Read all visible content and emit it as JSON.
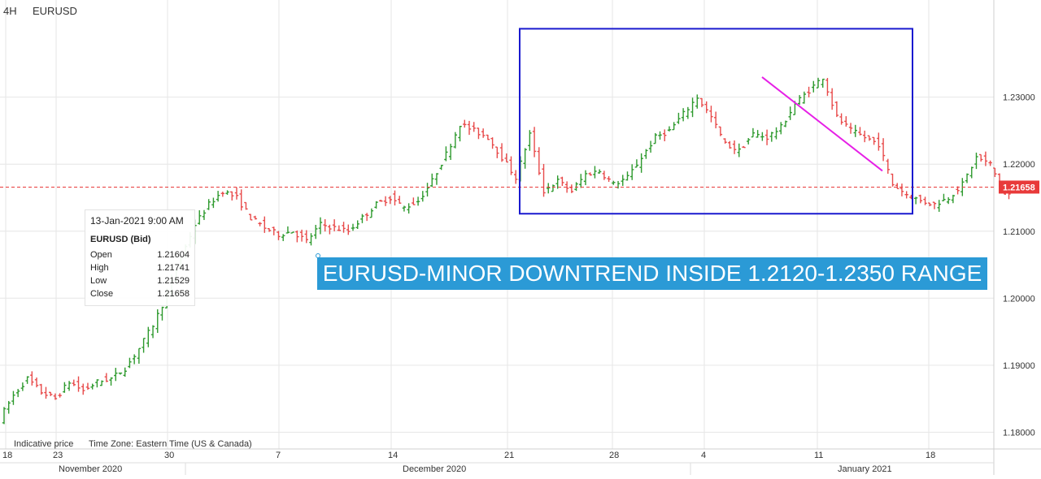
{
  "header": {
    "timeframe": "4H",
    "symbol": "EURUSD"
  },
  "tooltip": {
    "datetime": "13-Jan-2021 9:00 AM",
    "instrument": "EURUSD (Bid)",
    "rows": [
      {
        "label": "Open",
        "value": "1.21604"
      },
      {
        "label": "High",
        "value": "1.21741"
      },
      {
        "label": "Low",
        "value": "1.21529"
      },
      {
        "label": "Close",
        "value": "1.21658"
      }
    ]
  },
  "annotation": {
    "text": "EURUSD-MINOR DOWNTREND INSIDE 1.2120-1.2350 RANGE"
  },
  "footer": {
    "indicative": "Indicative price",
    "timezone": "Time Zone: Eastern Time (US & Canada)"
  },
  "colors": {
    "up": "#2e9a2e",
    "down": "#e84a4a",
    "box": "#1a1acf",
    "trendline": "#e620e6",
    "price_line": "#e83a3a",
    "price_tag": "#e83a3a",
    "banner": "#2b9ad6",
    "grid": "#e6e6e6"
  },
  "chart_data": {
    "type": "ohlc",
    "instrument": "EURUSD",
    "ylim": [
      1.1775,
      1.2445
    ],
    "y_ticks": [
      "1.18000",
      "1.19000",
      "1.20000",
      "1.21000",
      "1.22000",
      "1.23000"
    ],
    "x_ticks": [
      "18",
      "23",
      "30",
      "7",
      "14",
      "21",
      "28",
      "4",
      "11",
      "18"
    ],
    "month_labels": [
      "November 2020",
      "December 2020",
      "January 2021"
    ],
    "current_price": "1.21658",
    "range_box": {
      "low": 1.212,
      "high": 1.235,
      "start": "Dec 21",
      "end": "Jan 16"
    },
    "trendline": {
      "from": {
        "date": "Jan 6",
        "price": 1.233
      },
      "to": {
        "date": "Jan 15",
        "price": 1.219
      }
    },
    "path": [
      [
        0,
        1.182
      ],
      [
        3,
        1.1855
      ],
      [
        6,
        1.188
      ],
      [
        9,
        1.186
      ],
      [
        12,
        1.185
      ],
      [
        15,
        1.1875
      ],
      [
        18,
        1.1862
      ],
      [
        21,
        1.1875
      ],
      [
        24,
        1.188
      ],
      [
        27,
        1.1895
      ],
      [
        30,
        1.1925
      ],
      [
        33,
        1.196
      ],
      [
        36,
        1.2005
      ],
      [
        39,
        1.206
      ],
      [
        42,
        1.211
      ],
      [
        45,
        1.214
      ],
      [
        48,
        1.216
      ],
      [
        51,
        1.215
      ],
      [
        54,
        1.212
      ],
      [
        57,
        1.2105
      ],
      [
        60,
        1.2095
      ],
      [
        63,
        1.21
      ],
      [
        66,
        1.2085
      ],
      [
        69,
        1.211
      ],
      [
        72,
        1.2105
      ],
      [
        75,
        1.21
      ],
      [
        78,
        1.212
      ],
      [
        81,
        1.214
      ],
      [
        84,
        1.215
      ],
      [
        87,
        1.2135
      ],
      [
        90,
        1.2145
      ],
      [
        93,
        1.2175
      ],
      [
        96,
        1.2215
      ],
      [
        99,
        1.226
      ],
      [
        102,
        1.225
      ],
      [
        105,
        1.224
      ],
      [
        108,
        1.221
      ],
      [
        111,
        1.218
      ],
      [
        114,
        1.2245
      ],
      [
        117,
        1.216
      ],
      [
        120,
        1.2175
      ],
      [
        123,
        1.216
      ],
      [
        126,
        1.2185
      ],
      [
        129,
        1.219
      ],
      [
        132,
        1.217
      ],
      [
        135,
        1.218
      ],
      [
        138,
        1.221
      ],
      [
        141,
        1.224
      ],
      [
        144,
        1.225
      ],
      [
        147,
        1.2275
      ],
      [
        150,
        1.23
      ],
      [
        153,
        1.227
      ],
      [
        156,
        1.223
      ],
      [
        159,
        1.222
      ],
      [
        162,
        1.2245
      ],
      [
        165,
        1.224
      ],
      [
        168,
        1.2255
      ],
      [
        171,
        1.229
      ],
      [
        174,
        1.231
      ],
      [
        177,
        1.233
      ],
      [
        180,
        1.227
      ],
      [
        183,
        1.225
      ],
      [
        186,
        1.224
      ],
      [
        189,
        1.223
      ],
      [
        192,
        1.217
      ],
      [
        195,
        1.2155
      ],
      [
        198,
        1.2145
      ],
      [
        201,
        1.214
      ],
      [
        204,
        1.215
      ],
      [
        207,
        1.217
      ],
      [
        210,
        1.221
      ],
      [
        213,
        1.22
      ],
      [
        216,
        1.2155
      ]
    ]
  }
}
